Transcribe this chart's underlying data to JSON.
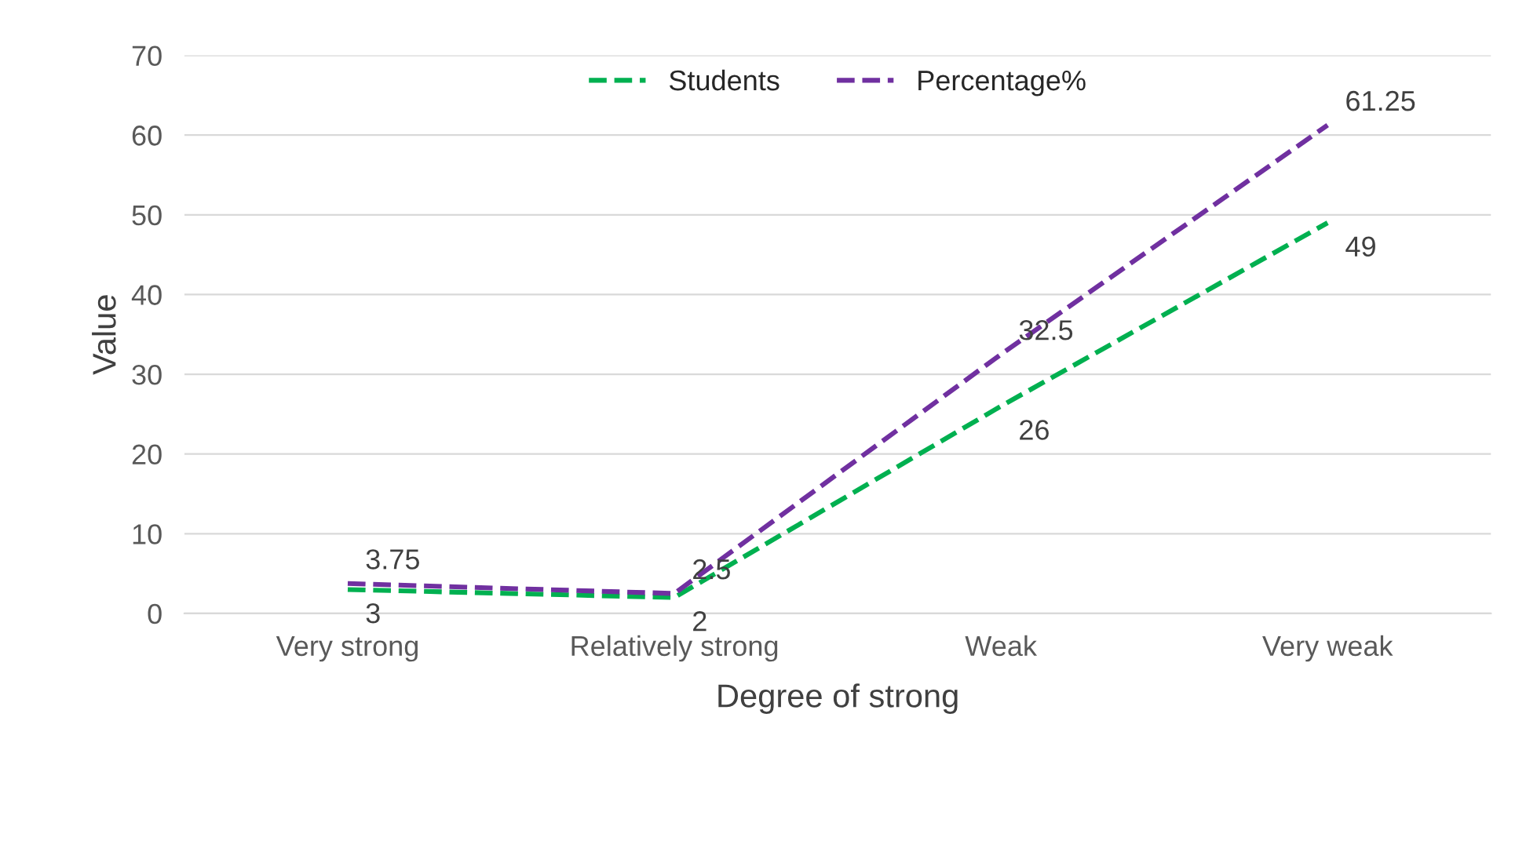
{
  "chart_data": {
    "type": "line",
    "xlabel": "Degree of strong",
    "ylabel": "Value",
    "categories": [
      "Very strong",
      "Relatively strong",
      "Weak",
      "Very weak"
    ],
    "series": [
      {
        "name": "Students",
        "color": "#00b050",
        "values": [
          3,
          2,
          26,
          49
        ]
      },
      {
        "name": "Percentage%",
        "color": "#7030a0",
        "values": [
          3.75,
          2.5,
          32.5,
          61.25
        ]
      }
    ],
    "ylim": [
      0,
      70
    ],
    "yticks": [
      0,
      10,
      20,
      30,
      40,
      50,
      60,
      70
    ],
    "grid": "y",
    "legend": "top",
    "data_labels": true,
    "line_style": "dashed"
  }
}
